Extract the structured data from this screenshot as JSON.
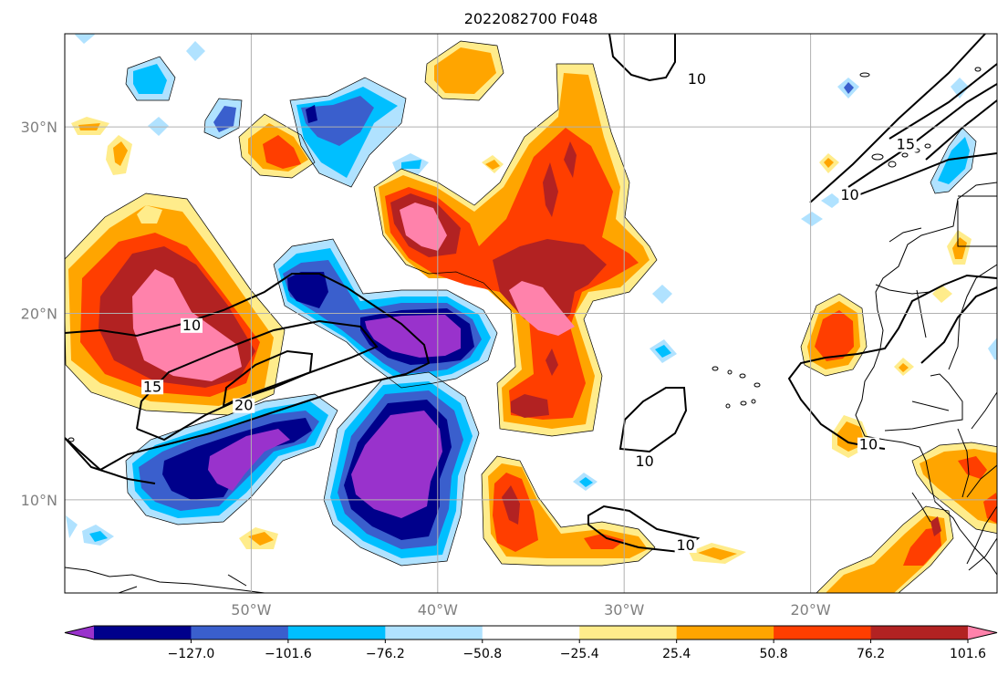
{
  "title": "2022082700 F048",
  "map": {
    "lon_range": [
      -60,
      -10
    ],
    "lat_range": [
      5,
      35
    ],
    "lon_ticks": [
      {
        "value": -50,
        "label": "50°W"
      },
      {
        "value": -40,
        "label": "40°W"
      },
      {
        "value": -30,
        "label": "30°W"
      },
      {
        "value": -20,
        "label": "20°W"
      }
    ],
    "lat_ticks": [
      {
        "value": 30,
        "label": "30°N"
      },
      {
        "value": 20,
        "label": "20°N"
      },
      {
        "value": 10,
        "label": "10°N"
      }
    ],
    "grid": true,
    "contour_labels": [
      {
        "text": "10",
        "lon": -53.2,
        "lat": 19.2
      },
      {
        "text": "15",
        "lon": -55.3,
        "lat": 15.9
      },
      {
        "text": "20",
        "lon": -50.4,
        "lat": 14.9
      },
      {
        "text": "10",
        "lon": -26.1,
        "lat": 32.4
      },
      {
        "text": "15",
        "lon": -14.9,
        "lat": 28.9
      },
      {
        "text": "10",
        "lon": -17.9,
        "lat": 26.2
      },
      {
        "text": "10",
        "lon": -28.9,
        "lat": 11.9
      },
      {
        "text": "10",
        "lon": -26.7,
        "lat": 7.4
      },
      {
        "text": "10",
        "lon": -16.9,
        "lat": 12.8
      }
    ]
  },
  "colorbar": {
    "colors": [
      "#9932CC",
      "#00008B",
      "#3A5FCD",
      "#00BFFF",
      "#B0E2FF",
      "#FFFFFF",
      "#FFEC8B",
      "#FFA500",
      "#FF3E00",
      "#B22222",
      "#FF82AB"
    ],
    "tick_labels": [
      "−127.0",
      "−101.6",
      "−76.2",
      "−50.8",
      "−25.4",
      "25.4",
      "50.8",
      "76.2",
      "101.6",
      "127.0"
    ],
    "extend": "both"
  },
  "chart_data": {
    "type": "heatmap",
    "title": "2022082700 F048",
    "x_range_lon": [
      -60,
      -10
    ],
    "y_range_lat": [
      5,
      35
    ],
    "levels": [
      -127.0,
      -101.6,
      -76.2,
      -50.8,
      -25.4,
      25.4,
      50.8,
      76.2,
      101.6,
      127.0
    ],
    "line_contour_levels": [
      10,
      15,
      20
    ],
    "features": [
      {
        "sign": "positive",
        "peak_level": 127.0,
        "center_lon": -53.5,
        "center_lat": 19.0
      },
      {
        "sign": "positive",
        "peak_level": 127.0,
        "center_lon": -38.8,
        "center_lat": 24.5
      },
      {
        "sign": "positive",
        "peak_level": 127.0,
        "center_lon": -34.3,
        "center_lat": 20.0
      },
      {
        "sign": "positive",
        "peak_level": 101.6,
        "center_lon": -33.5,
        "center_lat": 26.5
      },
      {
        "sign": "positive",
        "peak_level": 101.6,
        "center_lon": -37.0,
        "center_lat": 9.5
      },
      {
        "sign": "positive",
        "peak_level": 76.2,
        "center_lon": -34.5,
        "center_lat": 15.0
      },
      {
        "sign": "positive",
        "peak_level": 76.2,
        "center_lon": -30.0,
        "center_lat": 7.0
      },
      {
        "sign": "positive",
        "peak_level": 76.2,
        "center_lon": -18.7,
        "center_lat": 19.0
      },
      {
        "sign": "positive",
        "peak_level": 76.2,
        "center_lon": -12.0,
        "center_lat": 11.0
      },
      {
        "sign": "positive",
        "peak_level": 76.2,
        "center_lon": -14.0,
        "center_lat": 6.5
      },
      {
        "sign": "positive",
        "peak_level": 76.2,
        "center_lon": -48.5,
        "center_lat": 28.5
      },
      {
        "sign": "positive",
        "peak_level": 50.8,
        "center_lon": -41.0,
        "center_lat": 33.0
      },
      {
        "sign": "negative",
        "peak_level": -127.0,
        "center_lon": -45.0,
        "center_lat": 19.0
      },
      {
        "sign": "negative",
        "peak_level": -127.0,
        "center_lon": -49.0,
        "center_lat": 11.5
      },
      {
        "sign": "negative",
        "peak_level": -127.0,
        "center_lon": -41.3,
        "center_lat": 11.0
      },
      {
        "sign": "negative",
        "peak_level": -101.6,
        "center_lon": -46.0,
        "center_lat": 21.0
      },
      {
        "sign": "negative",
        "peak_level": -101.6,
        "center_lon": -45.5,
        "center_lat": 30.5
      },
      {
        "sign": "negative",
        "peak_level": -76.2,
        "center_lon": -49.3,
        "center_lat": 30.0
      },
      {
        "sign": "negative",
        "peak_level": -76.2,
        "center_lon": -49.0,
        "center_lat": 25.0
      },
      {
        "sign": "negative",
        "peak_level": -50.8,
        "center_lon": -55.0,
        "center_lat": 32.5
      },
      {
        "sign": "negative",
        "peak_level": -50.8,
        "center_lon": -11.8,
        "center_lat": 28.0
      }
    ]
  }
}
